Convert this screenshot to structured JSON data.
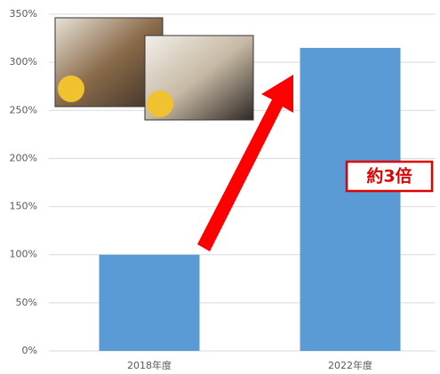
{
  "chart_data": {
    "type": "bar",
    "categories": [
      "2018年度",
      "2022年度"
    ],
    "values": [
      100,
      315
    ],
    "color": "#5b9bd5",
    "ylim": [
      0,
      350
    ],
    "yticks": [
      {
        "value": 0,
        "label": "0%"
      },
      {
        "value": 50,
        "label": "50%"
      },
      {
        "value": 100,
        "label": "100%"
      },
      {
        "value": 150,
        "label": "150%"
      },
      {
        "value": 200,
        "label": "200%"
      },
      {
        "value": 250,
        "label": "250%"
      },
      {
        "value": 300,
        "label": "300%"
      },
      {
        "value": 350,
        "label": "350%"
      }
    ],
    "grid": true,
    "annotation": "約3倍"
  }
}
